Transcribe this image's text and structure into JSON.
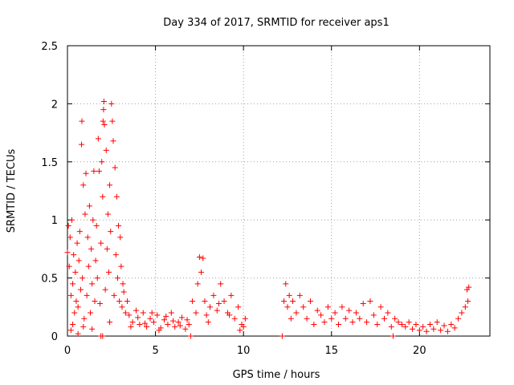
{
  "chart_data": {
    "type": "scatter",
    "title": "Day 334 of 2017, SRMTID for receiver aps1",
    "xlabel": "GPS time / hours",
    "ylabel": "SRMTID / TECUs",
    "xlim": [
      0,
      24
    ],
    "ylim": [
      0,
      2.5
    ],
    "x_ticks": [
      0,
      5,
      10,
      15,
      20
    ],
    "x_tick_labels": [
      "0",
      "5",
      "10",
      "15",
      "20"
    ],
    "y_ticks": [
      0,
      0.5,
      1,
      1.5,
      2,
      2.5
    ],
    "y_tick_labels": [
      "0",
      "0.5",
      "1",
      "1.5",
      "2",
      "2.5"
    ],
    "grid": true,
    "marker": "plus",
    "color": "#ff0000",
    "series": [
      {
        "name": "SRMTID",
        "points": [
          [
            0.0,
            0.72
          ],
          [
            0.05,
            0.95
          ],
          [
            0.1,
            0.6
          ],
          [
            0.15,
            0.85
          ],
          [
            0.2,
            0.35
          ],
          [
            0.25,
            1.0
          ],
          [
            0.3,
            0.45
          ],
          [
            0.35,
            0.7
          ],
          [
            0.4,
            0.2
          ],
          [
            0.45,
            0.55
          ],
          [
            0.5,
            0.3
          ],
          [
            0.55,
            0.8
          ],
          [
            0.6,
            0.25
          ],
          [
            0.65,
            0.65
          ],
          [
            0.7,
            0.9
          ],
          [
            0.75,
            0.4
          ],
          [
            0.8,
            1.65
          ],
          [
            0.82,
            1.85
          ],
          [
            0.85,
            0.5
          ],
          [
            0.9,
            1.3
          ],
          [
            0.95,
            0.15
          ],
          [
            1.0,
            1.05
          ],
          [
            1.05,
            1.4
          ],
          [
            1.1,
            0.35
          ],
          [
            1.15,
            0.85
          ],
          [
            1.2,
            0.6
          ],
          [
            1.25,
            1.12
          ],
          [
            1.3,
            0.2
          ],
          [
            1.35,
            0.75
          ],
          [
            1.4,
            0.45
          ],
          [
            1.45,
            1.0
          ],
          [
            1.5,
            1.42
          ],
          [
            1.55,
            0.3
          ],
          [
            1.6,
            0.65
          ],
          [
            1.65,
            0.95
          ],
          [
            1.7,
            0.5
          ],
          [
            1.75,
            1.7
          ],
          [
            1.8,
            1.42
          ],
          [
            1.85,
            0.28
          ],
          [
            1.9,
            0.8
          ],
          [
            1.95,
            1.5
          ],
          [
            2.0,
            1.2
          ],
          [
            2.02,
            1.85
          ],
          [
            2.05,
            1.95
          ],
          [
            2.07,
            2.02
          ],
          [
            2.1,
            1.82
          ],
          [
            2.15,
            0.4
          ],
          [
            2.2,
            1.6
          ],
          [
            2.25,
            0.75
          ],
          [
            2.3,
            1.05
          ],
          [
            2.35,
            0.55
          ],
          [
            2.4,
            1.3
          ],
          [
            2.45,
            0.9
          ],
          [
            2.5,
            2.0
          ],
          [
            2.55,
            1.85
          ],
          [
            2.6,
            1.68
          ],
          [
            2.65,
            0.35
          ],
          [
            2.7,
            1.45
          ],
          [
            2.75,
            0.7
          ],
          [
            2.8,
            1.2
          ],
          [
            2.85,
            0.5
          ],
          [
            2.9,
            0.95
          ],
          [
            2.95,
            0.3
          ],
          [
            3.0,
            0.85
          ],
          [
            3.05,
            0.6
          ],
          [
            3.1,
            0.25
          ],
          [
            3.15,
            0.45
          ],
          [
            3.2,
            0.38
          ],
          [
            3.3,
            0.2
          ],
          [
            3.4,
            0.3
          ],
          [
            0.2,
            0.05
          ],
          [
            0.6,
            0.02
          ],
          [
            0.9,
            0.08
          ],
          [
            1.4,
            0.06
          ],
          [
            1.9,
            0.0
          ],
          [
            2.4,
            0.12
          ],
          [
            2.0,
            0.0
          ],
          [
            0.3,
            0.1
          ],
          [
            3.5,
            0.18
          ],
          [
            3.7,
            0.12
          ],
          [
            3.9,
            0.22
          ],
          [
            4.1,
            0.1
          ],
          [
            4.3,
            0.2
          ],
          [
            4.5,
            0.08
          ],
          [
            4.7,
            0.15
          ],
          [
            4.9,
            0.12
          ],
          [
            5.1,
            0.18
          ],
          [
            5.3,
            0.07
          ],
          [
            5.5,
            0.14
          ],
          [
            5.7,
            0.1
          ],
          [
            5.9,
            0.2
          ],
          [
            6.1,
            0.08
          ],
          [
            6.3,
            0.12
          ],
          [
            6.5,
            0.16
          ],
          [
            6.7,
            0.06
          ],
          [
            6.9,
            0.1
          ],
          [
            3.6,
            0.08
          ],
          [
            4.0,
            0.16
          ],
          [
            4.4,
            0.11
          ],
          [
            4.8,
            0.2
          ],
          [
            5.2,
            0.05
          ],
          [
            5.6,
            0.17
          ],
          [
            6.0,
            0.13
          ],
          [
            6.4,
            0.09
          ],
          [
            6.8,
            0.14
          ],
          [
            7.0,
            0.0
          ],
          [
            7.1,
            0.3
          ],
          [
            7.3,
            0.2
          ],
          [
            7.4,
            0.45
          ],
          [
            7.5,
            0.68
          ],
          [
            7.6,
            0.55
          ],
          [
            7.7,
            0.67
          ],
          [
            7.8,
            0.3
          ],
          [
            7.9,
            0.18
          ],
          [
            8.1,
            0.25
          ],
          [
            8.3,
            0.35
          ],
          [
            8.5,
            0.22
          ],
          [
            8.7,
            0.45
          ],
          [
            8.9,
            0.3
          ],
          [
            9.1,
            0.2
          ],
          [
            9.3,
            0.35
          ],
          [
            9.5,
            0.15
          ],
          [
            9.7,
            0.25
          ],
          [
            9.9,
            0.1
          ],
          [
            10.0,
            0.08
          ],
          [
            10.1,
            0.15
          ],
          [
            8.0,
            0.12
          ],
          [
            8.6,
            0.28
          ],
          [
            9.2,
            0.18
          ],
          [
            9.8,
            0.05
          ],
          [
            12.2,
            0.0
          ],
          [
            12.3,
            0.3
          ],
          [
            12.4,
            0.45
          ],
          [
            12.5,
            0.25
          ],
          [
            12.6,
            0.35
          ],
          [
            12.7,
            0.15
          ],
          [
            12.8,
            0.3
          ],
          [
            13.0,
            0.2
          ],
          [
            13.2,
            0.35
          ],
          [
            13.4,
            0.25
          ],
          [
            13.6,
            0.15
          ],
          [
            13.8,
            0.3
          ],
          [
            14.0,
            0.1
          ],
          [
            14.2,
            0.22
          ],
          [
            14.4,
            0.18
          ],
          [
            14.6,
            0.12
          ],
          [
            14.8,
            0.25
          ],
          [
            15.0,
            0.15
          ],
          [
            15.2,
            0.2
          ],
          [
            15.4,
            0.1
          ],
          [
            15.6,
            0.25
          ],
          [
            15.8,
            0.15
          ],
          [
            16.0,
            0.22
          ],
          [
            16.2,
            0.12
          ],
          [
            16.4,
            0.2
          ],
          [
            16.6,
            0.15
          ],
          [
            16.8,
            0.28
          ],
          [
            17.0,
            0.12
          ],
          [
            17.2,
            0.3
          ],
          [
            17.4,
            0.18
          ],
          [
            17.6,
            0.1
          ],
          [
            17.8,
            0.25
          ],
          [
            18.0,
            0.15
          ],
          [
            18.2,
            0.2
          ],
          [
            18.4,
            0.08
          ],
          [
            18.5,
            0.0
          ],
          [
            18.6,
            0.15
          ],
          [
            18.8,
            0.12
          ],
          [
            19.0,
            0.1
          ],
          [
            19.2,
            0.08
          ],
          [
            19.4,
            0.12
          ],
          [
            19.6,
            0.06
          ],
          [
            19.8,
            0.1
          ],
          [
            20.0,
            0.05
          ],
          [
            20.2,
            0.08
          ],
          [
            20.4,
            0.04
          ],
          [
            20.6,
            0.1
          ],
          [
            20.8,
            0.06
          ],
          [
            21.0,
            0.12
          ],
          [
            21.2,
            0.05
          ],
          [
            21.4,
            0.09
          ],
          [
            21.6,
            0.04
          ],
          [
            21.8,
            0.1
          ],
          [
            22.0,
            0.07
          ],
          [
            22.2,
            0.15
          ],
          [
            22.4,
            0.2
          ],
          [
            22.6,
            0.25
          ],
          [
            22.7,
            0.4
          ],
          [
            22.8,
            0.42
          ],
          [
            22.75,
            0.3
          ]
        ]
      }
    ]
  }
}
